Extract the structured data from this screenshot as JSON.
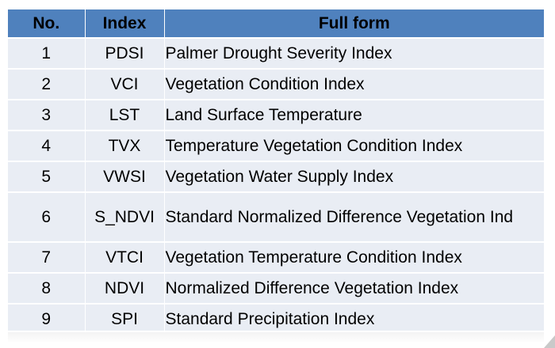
{
  "table": {
    "headers": [
      "No.",
      "Index",
      "Full form"
    ],
    "rows": [
      [
        "1",
        "PDSI",
        "Palmer Drought Severity Index"
      ],
      [
        "2",
        "VCI",
        "Vegetation Condition Index"
      ],
      [
        "3",
        "LST",
        "Land Surface Temperature"
      ],
      [
        "4",
        "TVX",
        "Temperature Vegetation Condition Index"
      ],
      [
        "5",
        "VWSI",
        "Vegetation Water Supply Index"
      ],
      [
        "6",
        "S_NDVI",
        "Standard Normalized Difference Vegetation Ind"
      ],
      [
        "7",
        "VTCI",
        "Vegetation Temperature Condition Index"
      ],
      [
        "8",
        "NDVI",
        "Normalized Difference Vegetation Index"
      ],
      [
        "9",
        "SPI",
        "Standard Precipitation Index"
      ]
    ]
  },
  "colors": {
    "header_bg": "#4f81bd",
    "row_bg": "#e9edf4"
  }
}
